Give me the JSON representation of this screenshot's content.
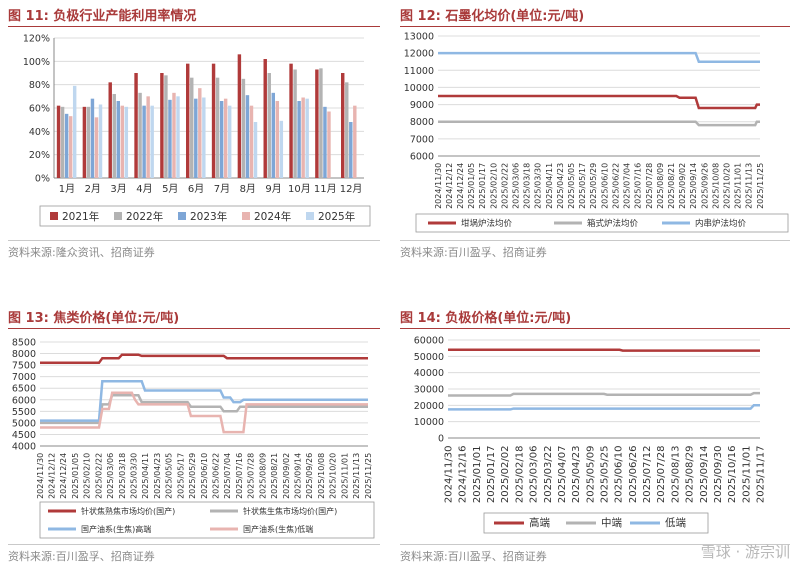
{
  "charts": [
    {
      "figure_label": "图 11:",
      "figure_title": "负极行业产能利用率情况",
      "source": "资料来源:隆众资讯、招商证券",
      "chart_data": {
        "type": "bar",
        "categories": [
          "1月",
          "2月",
          "3月",
          "4月",
          "5月",
          "6月",
          "7月",
          "8月",
          "9月",
          "10月",
          "11月",
          "12月"
        ],
        "series": [
          {
            "name": "2021年",
            "color": "#b03a3a",
            "values": [
              0.62,
              0.61,
              0.82,
              0.9,
              0.9,
              0.98,
              0.98,
              1.06,
              1.02,
              0.98,
              0.93,
              0.9
            ]
          },
          {
            "name": "2022年",
            "color": "#b3b3b3",
            "values": [
              0.61,
              0.61,
              0.72,
              0.73,
              0.88,
              0.86,
              0.86,
              0.85,
              0.9,
              0.93,
              0.94,
              0.82
            ]
          },
          {
            "name": "2023年",
            "color": "#7ea6d6",
            "values": [
              0.55,
              0.68,
              0.66,
              0.62,
              0.67,
              0.68,
              0.66,
              0.71,
              0.73,
              0.66,
              0.61,
              0.48
            ]
          },
          {
            "name": "2024年",
            "color": "#e8b4b0",
            "values": [
              0.53,
              0.52,
              0.62,
              0.7,
              0.73,
              0.77,
              0.68,
              0.62,
              0.66,
              0.69,
              0.57,
              0.62
            ]
          },
          {
            "name": "2025年",
            "color": "#bfd7ef",
            "values": [
              0.79,
              0.63,
              0.61,
              0.62,
              0.7,
              0.69,
              0.62,
              0.48,
              0.49,
              0.68,
              null,
              null
            ]
          }
        ],
        "y_ticks": [
          "0%",
          "20%",
          "40%",
          "60%",
          "80%",
          "100%",
          "120%"
        ],
        "ylim": [
          0,
          1.2
        ],
        "grid": true,
        "legend": "bottom"
      }
    },
    {
      "figure_label": "图 12:",
      "figure_title": "石墨化均价(单位:元/吨)",
      "source": "资料来源:百川盈孚、招商证券",
      "chart_data": {
        "type": "line",
        "x_labels": [
          "2024/11/30",
          "2024/12/12",
          "2024/12/24",
          "2025/01/05",
          "2025/01/17",
          "2025/02/10",
          "2025/02/22",
          "2025/03/06",
          "2025/03/18",
          "2025/03/30",
          "2025/04/11",
          "2025/04/23",
          "2025/05/05",
          "2025/05/17",
          "2025/05/29",
          "2025/06/10",
          "2025/06/22",
          "2025/07/04",
          "2025/07/16",
          "2025/07/28",
          "2025/08/09",
          "2025/08/21",
          "2025/09/02",
          "2025/09/14",
          "2025/09/26",
          "2025/10/08",
          "2025/10/20",
          "2025/11/01",
          "2025/11/13",
          "2025/11/25"
        ],
        "series": [
          {
            "name": "坩埚炉法均价",
            "color": "#b03a3a",
            "points": [
              [
                0,
                9500
              ],
              [
                0.74,
                9500
              ],
              [
                0.75,
                9400
              ],
              [
                0.8,
                9400
              ],
              [
                0.81,
                8800
              ],
              [
                0.985,
                8800
              ],
              [
                0.99,
                9000
              ],
              [
                1,
                9000
              ]
            ]
          },
          {
            "name": "箱式炉法均价",
            "color": "#b3b3b3",
            "points": [
              [
                0,
                8000
              ],
              [
                0.8,
                8000
              ],
              [
                0.81,
                7800
              ],
              [
                0.985,
                7800
              ],
              [
                0.99,
                8000
              ],
              [
                1,
                8000
              ]
            ]
          },
          {
            "name": "内串炉法均价",
            "color": "#8fb8e3",
            "points": [
              [
                0,
                12000
              ],
              [
                0.8,
                12000
              ],
              [
                0.81,
                11500
              ],
              [
                1,
                11500
              ]
            ]
          }
        ],
        "y_ticks": [
          "6000",
          "7000",
          "8000",
          "9000",
          "10000",
          "11000",
          "12000",
          "13000"
        ],
        "ylim": [
          6000,
          13000
        ],
        "grid": true,
        "legend": "bottom"
      }
    },
    {
      "figure_label": "图 13:",
      "figure_title": "焦类价格(单位:元/吨)",
      "source": "资料来源:百川盈孚、招商证券",
      "chart_data": {
        "type": "line",
        "x_labels": [
          "2024/11/30",
          "2024/12/12",
          "2024/12/24",
          "2025/01/05",
          "2025/02/10",
          "2025/02/22",
          "2025/03/06",
          "2025/03/18",
          "2025/03/30",
          "2025/04/11",
          "2025/04/23",
          "2025/05/05",
          "2025/05/17",
          "2025/05/29",
          "2025/06/10",
          "2025/06/22",
          "2025/07/04",
          "2025/07/16",
          "2025/07/28",
          "2025/08/09",
          "2025/08/21",
          "2025/09/02",
          "2025/09/14",
          "2025/09/26",
          "2025/10/08",
          "2025/10/20",
          "2025/11/01",
          "2025/11/13",
          "2025/11/25"
        ],
        "series": [
          {
            "name": "针状焦熟焦市场均价(国产)",
            "color": "#b03a3a",
            "points": [
              [
                0,
                7600
              ],
              [
                0.18,
                7600
              ],
              [
                0.19,
                7800
              ],
              [
                0.24,
                7800
              ],
              [
                0.25,
                7950
              ],
              [
                0.3,
                7950
              ],
              [
                0.31,
                7900
              ],
              [
                0.56,
                7900
              ],
              [
                0.57,
                7800
              ],
              [
                1,
                7800
              ]
            ]
          },
          {
            "name": "针状焦生焦市场均价(国产)",
            "color": "#b3b3b3",
            "points": [
              [
                0,
                5000
              ],
              [
                0.18,
                5000
              ],
              [
                0.19,
                5800
              ],
              [
                0.21,
                5800
              ],
              [
                0.22,
                6200
              ],
              [
                0.3,
                6200
              ],
              [
                0.31,
                5900
              ],
              [
                0.45,
                5900
              ],
              [
                0.46,
                5700
              ],
              [
                0.55,
                5700
              ],
              [
                0.56,
                5500
              ],
              [
                0.6,
                5500
              ],
              [
                0.61,
                5700
              ],
              [
                1,
                5700
              ]
            ]
          },
          {
            "name": "国产油系(生焦)高端",
            "color": "#8fb8e3",
            "points": [
              [
                0,
                5100
              ],
              [
                0.18,
                5100
              ],
              [
                0.19,
                6800
              ],
              [
                0.31,
                6800
              ],
              [
                0.32,
                6400
              ],
              [
                0.55,
                6400
              ],
              [
                0.56,
                6100
              ],
              [
                0.58,
                6100
              ],
              [
                0.59,
                5900
              ],
              [
                0.61,
                5900
              ],
              [
                0.62,
                6000
              ],
              [
                1,
                6000
              ]
            ]
          },
          {
            "name": "国产油系(生焦)低端",
            "color": "#e8b4b0",
            "points": [
              [
                0,
                4800
              ],
              [
                0.18,
                4800
              ],
              [
                0.19,
                5600
              ],
              [
                0.21,
                5600
              ],
              [
                0.22,
                6300
              ],
              [
                0.28,
                6300
              ],
              [
                0.29,
                6000
              ],
              [
                0.3,
                5800
              ],
              [
                0.45,
                5800
              ],
              [
                0.46,
                5300
              ],
              [
                0.55,
                5300
              ],
              [
                0.56,
                4600
              ],
              [
                0.62,
                4600
              ],
              [
                0.63,
                5800
              ],
              [
                1,
                5800
              ]
            ]
          }
        ],
        "y_ticks": [
          "4000",
          "4500",
          "5000",
          "5500",
          "6000",
          "6500",
          "7000",
          "7500",
          "8000",
          "8500"
        ],
        "ylim": [
          4000,
          8500
        ],
        "grid": true,
        "legend": "bottom"
      }
    },
    {
      "figure_label": "图 14:",
      "figure_title": "负极价格(单位:元/吨)",
      "source": "资料来源:百川盈孚、招商证券",
      "chart_data": {
        "type": "line",
        "x_labels": [
          "2024/11/30",
          "2024/12/16",
          "2025/01/01",
          "2025/01/17",
          "2025/02/02",
          "2025/02/18",
          "2025/03/06",
          "2025/03/22",
          "2025/04/07",
          "2025/04/23",
          "2025/05/09",
          "2025/05/25",
          "2025/06/10",
          "2025/06/26",
          "2025/07/12",
          "2025/07/28",
          "2025/08/13",
          "2025/08/29",
          "2025/09/14",
          "2025/09/30",
          "2025/10/16",
          "2025/11/01",
          "2025/11/17"
        ],
        "series": [
          {
            "name": "高端",
            "color": "#b03a3a",
            "points": [
              [
                0,
                54000
              ],
              [
                0.55,
                54000
              ],
              [
                0.56,
                53500
              ],
              [
                1,
                53500
              ]
            ]
          },
          {
            "name": "中端",
            "color": "#b3b3b3",
            "points": [
              [
                0,
                26000
              ],
              [
                0.2,
                26000
              ],
              [
                0.21,
                27000
              ],
              [
                0.5,
                27000
              ],
              [
                0.51,
                26500
              ],
              [
                0.97,
                26500
              ],
              [
                0.98,
                27500
              ],
              [
                1,
                27500
              ]
            ]
          },
          {
            "name": "低端",
            "color": "#8fb8e3",
            "points": [
              [
                0,
                17500
              ],
              [
                0.2,
                17500
              ],
              [
                0.21,
                18000
              ],
              [
                0.97,
                18000
              ],
              [
                0.98,
                20000
              ],
              [
                1,
                20000
              ]
            ]
          }
        ],
        "y_ticks": [
          "0",
          "10000",
          "20000",
          "30000",
          "40000",
          "50000",
          "60000"
        ],
        "ylim": [
          0,
          60000
        ],
        "grid": true,
        "legend": "bottom"
      }
    }
  ],
  "watermark": "雪球 · 游宗训"
}
